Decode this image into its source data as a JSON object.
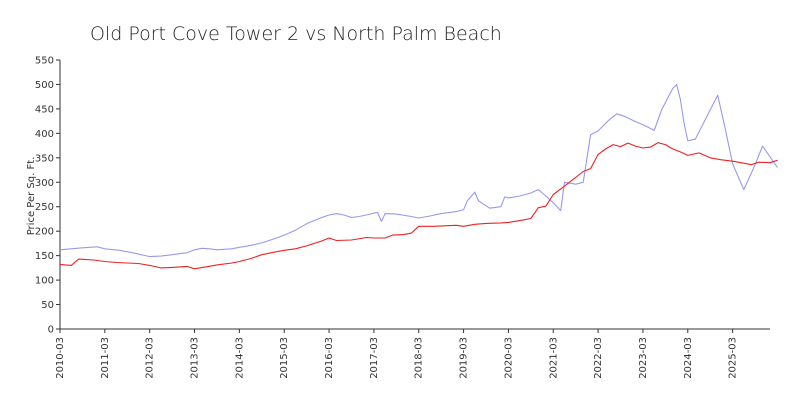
{
  "chart_data": {
    "type": "line",
    "title": "Old Port Cove Tower 2 vs North Palm Beach",
    "xlabel": "",
    "ylabel": "Price Per Sq. Ft.",
    "ylim": [
      0,
      550
    ],
    "yticks": [
      0,
      50,
      100,
      150,
      200,
      250,
      300,
      350,
      400,
      450,
      500,
      550
    ],
    "x_range": [
      "2010-03",
      "2026-01"
    ],
    "xticks": [
      "2010-03",
      "2011-03",
      "2012-03",
      "2013-03",
      "2014-03",
      "2015-03",
      "2016-03",
      "2017-03",
      "2018-03",
      "2019-03",
      "2020-03",
      "2021-03",
      "2022-03",
      "2023-03",
      "2024-03",
      "2025-03"
    ],
    "grid": false,
    "legend": "none",
    "series": [
      {
        "color": "#9999ee",
        "points": [
          [
            "2010-03",
            162
          ],
          [
            "2010-09",
            166
          ],
          [
            "2011-01",
            168
          ],
          [
            "2011-03",
            164
          ],
          [
            "2011-07",
            161
          ],
          [
            "2011-11",
            155
          ],
          [
            "2012-03",
            148
          ],
          [
            "2012-06",
            149
          ],
          [
            "2012-09",
            152
          ],
          [
            "2013-01",
            156
          ],
          [
            "2013-03",
            162
          ],
          [
            "2013-05",
            165
          ],
          [
            "2013-07",
            164
          ],
          [
            "2013-09",
            162
          ],
          [
            "2014-01",
            164
          ],
          [
            "2014-03",
            167
          ],
          [
            "2014-06",
            171
          ],
          [
            "2014-09",
            176
          ],
          [
            "2015-01",
            186
          ],
          [
            "2015-03",
            192
          ],
          [
            "2015-06",
            202
          ],
          [
            "2015-09",
            215
          ],
          [
            "2016-01",
            228
          ],
          [
            "2016-03",
            233
          ],
          [
            "2016-05",
            236
          ],
          [
            "2016-07",
            233
          ],
          [
            "2016-09",
            228
          ],
          [
            "2016-11",
            230
          ],
          [
            "2017-01",
            233
          ],
          [
            "2017-03",
            237
          ],
          [
            "2017-04",
            238
          ],
          [
            "2017-05",
            220
          ],
          [
            "2017-06",
            236
          ],
          [
            "2017-09",
            235
          ],
          [
            "2018-01",
            230
          ],
          [
            "2018-03",
            227
          ],
          [
            "2018-06",
            231
          ],
          [
            "2018-09",
            236
          ],
          [
            "2019-01",
            240
          ],
          [
            "2019-03",
            244
          ],
          [
            "2019-04",
            262
          ],
          [
            "2019-06",
            280
          ],
          [
            "2019-07",
            262
          ],
          [
            "2019-09",
            252
          ],
          [
            "2019-10",
            247
          ],
          [
            "2020-01",
            250
          ],
          [
            "2020-02",
            270
          ],
          [
            "2020-03",
            268
          ],
          [
            "2020-06",
            272
          ],
          [
            "2020-09",
            278
          ],
          [
            "2020-11",
            285
          ],
          [
            "2021-01",
            272
          ],
          [
            "2021-03",
            258
          ],
          [
            "2021-05",
            242
          ],
          [
            "2021-06",
            300
          ],
          [
            "2021-09",
            296
          ],
          [
            "2021-11",
            300
          ],
          [
            "2022-01",
            397
          ],
          [
            "2022-03",
            405
          ],
          [
            "2022-06",
            428
          ],
          [
            "2022-08",
            440
          ],
          [
            "2022-10",
            435
          ],
          [
            "2023-01",
            424
          ],
          [
            "2023-03",
            418
          ],
          [
            "2023-06",
            406
          ],
          [
            "2023-08",
            448
          ],
          [
            "2023-11",
            492
          ],
          [
            "2023-12",
            500
          ],
          [
            "2024-01",
            470
          ],
          [
            "2024-02",
            420
          ],
          [
            "2024-03",
            385
          ],
          [
            "2024-05",
            388
          ],
          [
            "2024-09",
            448
          ],
          [
            "2024-11",
            478
          ],
          [
            "2025-01",
            410
          ],
          [
            "2025-03",
            338
          ],
          [
            "2025-06",
            285
          ],
          [
            "2025-09",
            336
          ],
          [
            "2025-11",
            374
          ],
          [
            "2026-01",
            352
          ],
          [
            "2026-03",
            330
          ]
        ]
      },
      {
        "color": "#ee2222",
        "points": [
          [
            "2010-03",
            132
          ],
          [
            "2010-06",
            130
          ],
          [
            "2010-08",
            143
          ],
          [
            "2010-12",
            141
          ],
          [
            "2011-03",
            138
          ],
          [
            "2011-06",
            136
          ],
          [
            "2011-09",
            135
          ],
          [
            "2011-12",
            134
          ],
          [
            "2012-03",
            130
          ],
          [
            "2012-06",
            125
          ],
          [
            "2012-09",
            126
          ],
          [
            "2013-01",
            128
          ],
          [
            "2013-03",
            123
          ],
          [
            "2013-06",
            127
          ],
          [
            "2013-09",
            131
          ],
          [
            "2014-01",
            135
          ],
          [
            "2014-03",
            138
          ],
          [
            "2014-06",
            144
          ],
          [
            "2014-09",
            152
          ],
          [
            "2015-01",
            158
          ],
          [
            "2015-03",
            161
          ],
          [
            "2015-06",
            164
          ],
          [
            "2015-09",
            170
          ],
          [
            "2016-01",
            180
          ],
          [
            "2016-03",
            186
          ],
          [
            "2016-05",
            181
          ],
          [
            "2016-09",
            182
          ],
          [
            "2017-01",
            187
          ],
          [
            "2017-03",
            186
          ],
          [
            "2017-06",
            186
          ],
          [
            "2017-08",
            192
          ],
          [
            "2017-11",
            193
          ],
          [
            "2018-01",
            196
          ],
          [
            "2018-03",
            210
          ],
          [
            "2018-07",
            210
          ],
          [
            "2018-10",
            211
          ],
          [
            "2019-01",
            212
          ],
          [
            "2019-03",
            210
          ],
          [
            "2019-06",
            214
          ],
          [
            "2019-09",
            216
          ],
          [
            "2020-01",
            217
          ],
          [
            "2020-03",
            218
          ],
          [
            "2020-07",
            223
          ],
          [
            "2020-09",
            226
          ],
          [
            "2020-11",
            248
          ],
          [
            "2021-01",
            251
          ],
          [
            "2021-03",
            275
          ],
          [
            "2021-06",
            292
          ],
          [
            "2021-08",
            304
          ],
          [
            "2021-11",
            322
          ],
          [
            "2022-01",
            328
          ],
          [
            "2022-03",
            357
          ],
          [
            "2022-05",
            368
          ],
          [
            "2022-07",
            377
          ],
          [
            "2022-09",
            373
          ],
          [
            "2022-11",
            380
          ],
          [
            "2023-01",
            374
          ],
          [
            "2023-03",
            370
          ],
          [
            "2023-05",
            372
          ],
          [
            "2023-07",
            381
          ],
          [
            "2023-09",
            377
          ],
          [
            "2023-11",
            368
          ],
          [
            "2024-01",
            362
          ],
          [
            "2024-03",
            355
          ],
          [
            "2024-06",
            360
          ],
          [
            "2024-09",
            350
          ],
          [
            "2024-12",
            346
          ],
          [
            "2025-03",
            343
          ],
          [
            "2025-06",
            339
          ],
          [
            "2025-08",
            336
          ],
          [
            "2025-10",
            341
          ],
          [
            "2026-01",
            340
          ],
          [
            "2026-03",
            345
          ]
        ]
      }
    ]
  }
}
